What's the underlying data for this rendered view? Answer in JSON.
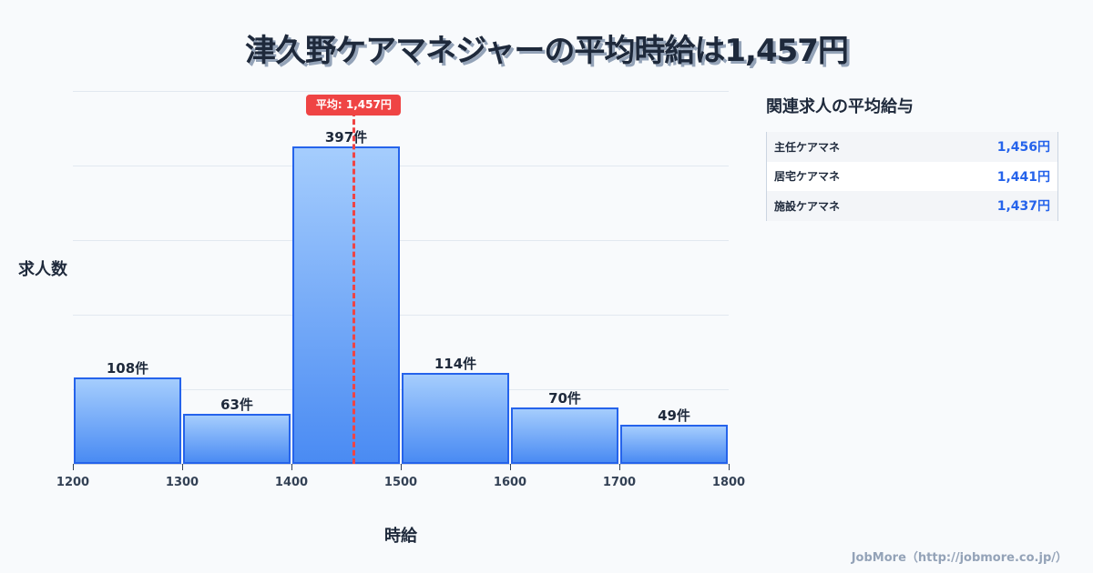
{
  "title": "津久野ケアマネジャーの平均時給は1,457円",
  "chart_data": {
    "type": "bar",
    "title": "津久野ケアマネジャーの平均時給は1,457円",
    "xlabel": "時給",
    "ylabel": "求人数",
    "x_ticks": [
      "1200",
      "1300",
      "1400",
      "1500",
      "1600",
      "1700",
      "1800"
    ],
    "bins": [
      {
        "range": [
          1200,
          1300
        ],
        "value": 108,
        "label": "108件"
      },
      {
        "range": [
          1300,
          1400
        ],
        "value": 63,
        "label": "63件"
      },
      {
        "range": [
          1400,
          1500
        ],
        "value": 397,
        "label": "397件"
      },
      {
        "range": [
          1500,
          1600
        ],
        "value": 114,
        "label": "114件"
      },
      {
        "range": [
          1600,
          1700
        ],
        "value": 70,
        "label": "70件"
      },
      {
        "range": [
          1700,
          1800
        ],
        "value": 49,
        "label": "49件"
      }
    ],
    "categories": [
      "1200-1300",
      "1300-1400",
      "1400-1500",
      "1500-1600",
      "1600-1700",
      "1700-1800"
    ],
    "values": [
      108,
      63,
      397,
      114,
      70,
      49
    ],
    "mean": {
      "value": 1457,
      "label": "平均: 1,457円"
    },
    "xlim": [
      1200,
      1800
    ],
    "grid": true,
    "bar_color": "#2563eb",
    "mean_color": "#ef4444"
  },
  "side_panel": {
    "title": "関連求人の平均給与",
    "rows": [
      {
        "name": "主任ケアマネ",
        "value": "1,456円"
      },
      {
        "name": "居宅ケアマネ",
        "value": "1,441円"
      },
      {
        "name": "施設ケアマネ",
        "value": "1,437円"
      }
    ]
  },
  "footer": "JobMore（http://jobmore.co.jp/）"
}
